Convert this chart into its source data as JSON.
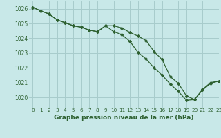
{
  "title": "Graphe pression niveau de la mer (hPa)",
  "bg_color": "#c8e8e8",
  "grid_color": "#a8cccc",
  "line_color": "#2d6030",
  "xlim": [
    -0.5,
    23
  ],
  "ylim": [
    1019.3,
    1026.5
  ],
  "yticks": [
    1020,
    1021,
    1022,
    1023,
    1024,
    1025,
    1026
  ],
  "xticks": [
    0,
    1,
    2,
    3,
    4,
    5,
    6,
    7,
    8,
    9,
    10,
    11,
    12,
    13,
    14,
    15,
    16,
    17,
    18,
    19,
    20,
    21,
    22,
    23
  ],
  "series1": [
    1026.1,
    1025.85,
    1025.65,
    1025.25,
    1025.05,
    1024.85,
    1024.75,
    1024.55,
    1024.45,
    1024.85,
    1024.85,
    1024.7,
    1024.4,
    1024.15,
    1023.85,
    1023.1,
    1022.55,
    1021.4,
    1020.95,
    1020.1,
    1019.85,
    1020.5,
    1020.95,
    1021.1
  ],
  "series2": [
    1026.1,
    1025.85,
    1025.65,
    1025.25,
    1025.05,
    1024.85,
    1024.75,
    1024.55,
    1024.45,
    1024.85,
    1024.45,
    1024.25,
    1023.8,
    1023.05,
    1022.6,
    1022.0,
    1021.5,
    1020.9,
    1020.4,
    1019.8,
    1019.85,
    1020.55,
    1021.0,
    1021.1
  ],
  "ylabel_fontsize": 5.5,
  "xlabel_fontsize": 6.5,
  "tick_fontsize": 5.2
}
